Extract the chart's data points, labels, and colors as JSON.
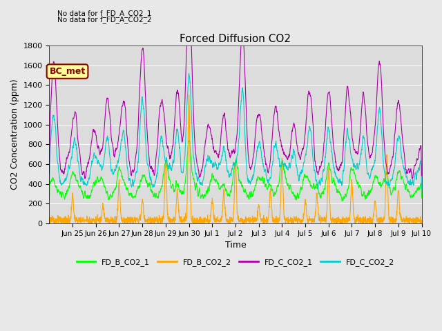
{
  "title": "Forced Diffusion CO2",
  "xlabel": "Time",
  "ylabel": "CO2 Concentration (ppm)",
  "ylim": [
    0,
    1800
  ],
  "yticks": [
    0,
    200,
    400,
    600,
    800,
    1000,
    1200,
    1400,
    1600,
    1800
  ],
  "xtick_labels": [
    "Jun 25",
    "Jun 26",
    "Jun 27",
    "Jun 28",
    "Jun 29",
    "Jun 30",
    "Jul 1",
    "Jul 2",
    "Jul 3",
    "Jul 4",
    "Jul 5",
    "Jul 6",
    "Jul 7",
    "Jul 8",
    "Jul 9",
    "Jul 10"
  ],
  "annotations": [
    "No data for f_FD_A_CO2_1",
    "No data for f_FD_A_CO2_2"
  ],
  "bc_met_label": "BC_met",
  "legend_entries": [
    "FD_B_CO2_1",
    "FD_B_CO2_2",
    "FD_C_CO2_1",
    "FD_C_CO2_2"
  ],
  "colors": {
    "FD_B_CO2_1": "#00FF00",
    "FD_B_CO2_2": "#FFA500",
    "FD_C_CO2_1": "#AA00AA",
    "FD_C_CO2_2": "#00CCCC"
  },
  "background_color": "#E8E8E8",
  "plot_bg_color": "#DCDCDC",
  "figsize": [
    6.4,
    4.8
  ],
  "dpi": 100
}
